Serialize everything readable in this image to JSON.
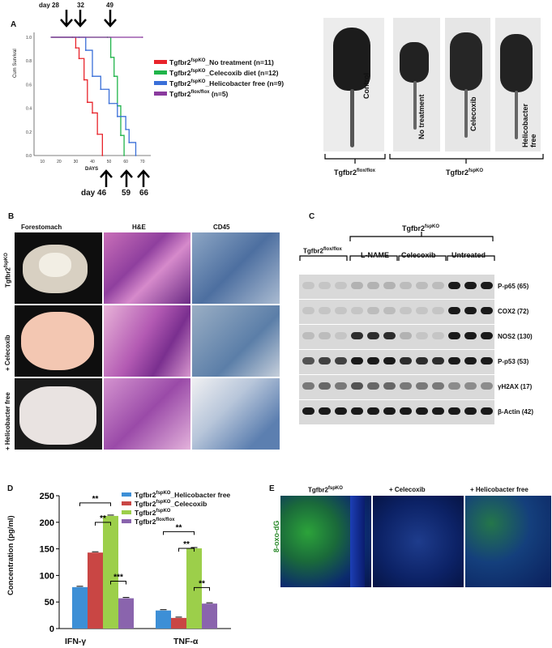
{
  "panels": {
    "a": "A",
    "b": "B",
    "c": "C",
    "d": "D",
    "e": "E"
  },
  "panel_a": {
    "top_days": [
      "day 28",
      "32",
      "49"
    ],
    "bottom_days": [
      "day 46",
      "59",
      "66"
    ],
    "ylabel": "Cum Survival",
    "xlabel": "DAYS",
    "yticks": [
      "1.0",
      "0.8",
      "0.6",
      "0.4",
      "0.2",
      "0.0"
    ],
    "xticks": [
      "10",
      "20",
      "30",
      "40",
      "50",
      "60",
      "70"
    ],
    "legend": [
      {
        "base": "Tgfbr2",
        "sup": "fspKO",
        "rest": "_No treatment (n=11)",
        "color": "#e8242b"
      },
      {
        "base": "Tgfbr2",
        "sup": "fspKO",
        "rest": "_Celecoxib diet (n=12)",
        "color": "#20b44a"
      },
      {
        "base": "Tgfbr2",
        "sup": "fspKO",
        "rest": "_Helicobacter free (n=9)",
        "color": "#3a6fd8"
      },
      {
        "base": "Tgfbr2",
        "sup": "flox/flox",
        "rest": " (n=5)",
        "color": "#8a3a9e"
      }
    ],
    "mouse_labels": [
      "Control",
      "No treatment",
      "Celecoxib",
      "Helicobacter free"
    ],
    "group_control": {
      "base": "Tgfbr2",
      "sup": "flox/flox"
    },
    "group_ko": {
      "base": "Tgfbr2",
      "sup": "fspKO"
    }
  },
  "panel_b": {
    "cols": [
      "Forestomach",
      "H&E",
      "CD45"
    ],
    "rows": [
      {
        "base": "Tgfbr2",
        "sup": "fspKO"
      },
      {
        "base": "+ Celecoxib",
        "sup": ""
      },
      {
        "base": "+ Helicobacter free",
        "sup": ""
      }
    ]
  },
  "panel_c": {
    "top_group": {
      "base": "Tgfbr2",
      "sup": "fspKO"
    },
    "groups": [
      {
        "base": "Tgfbr2",
        "sup": "flox/flox"
      },
      {
        "base": "L-NAME",
        "sup": ""
      },
      {
        "base": "Celecoxib",
        "sup": ""
      },
      {
        "base": "Untreated",
        "sup": ""
      }
    ],
    "rows": [
      "P-p65 (65)",
      "COX2 (72)",
      "NOS2 (130)",
      "P-p53 (53)",
      "γH2AX (17)",
      "β-Actin (42)"
    ]
  },
  "panel_e": {
    "cols": [
      {
        "base": "Tgfbr2",
        "sup": "fspKO"
      },
      {
        "base": "+ Celecoxib",
        "sup": ""
      },
      {
        "base": "+ Helicobacter free",
        "sup": ""
      }
    ],
    "ylabel": "8-oxo-dG"
  },
  "chart_data": [
    {
      "type": "line",
      "title": "",
      "xlabel": "DAYS",
      "ylabel": "Cum Survival",
      "xlim": [
        5,
        75
      ],
      "ylim": [
        0,
        1.0
      ],
      "series": [
        {
          "name": "Tgfbr2fspKO_No treatment (n=11)",
          "color": "#e8242b",
          "x": [
            15,
            28,
            30,
            32,
            35,
            37,
            40,
            43,
            46
          ],
          "y": [
            1.0,
            1.0,
            0.91,
            0.82,
            0.64,
            0.45,
            0.36,
            0.18,
            0.0
          ]
        },
        {
          "name": "Tgfbr2fspKO_Celecoxib diet (n=12)",
          "color": "#20b44a",
          "x": [
            15,
            49,
            51,
            53,
            55,
            57,
            59
          ],
          "y": [
            1.0,
            1.0,
            0.83,
            0.67,
            0.42,
            0.17,
            0.0
          ]
        },
        {
          "name": "Tgfbr2fspKO_Helicobacter free (n=9)",
          "color": "#3a6fd8",
          "x": [
            15,
            32,
            36,
            40,
            45,
            50,
            55,
            60,
            62,
            66
          ],
          "y": [
            1.0,
            1.0,
            0.89,
            0.67,
            0.56,
            0.44,
            0.33,
            0.22,
            0.11,
            0.0
          ]
        },
        {
          "name": "Tgfbr2flox/flox (n=5)",
          "color": "#8a3a9e",
          "x": [
            15,
            70
          ],
          "y": [
            1.0,
            1.0
          ]
        }
      ]
    },
    {
      "type": "bar",
      "title": "",
      "xlabel": "",
      "ylabel": "Concentration (pg/ml)",
      "ylim": [
        0,
        250
      ],
      "yticks": [
        0,
        50,
        100,
        150,
        200,
        250
      ],
      "categories": [
        "IFN-γ",
        "TNF-α"
      ],
      "series": [
        {
          "name": "Tgfbr2fspKO_Helicobacter free",
          "legend_base": "Tgfbr2",
          "legend_sup": "fspKO",
          "legend_rest": "_Helicobacter free",
          "color": "#3d8fd6",
          "values": [
            78,
            34
          ]
        },
        {
          "name": "Tgfbr2fspKO_Celecoxib",
          "legend_base": "Tgfbr2",
          "legend_sup": "fspKO",
          "legend_rest": "_Celecoxib",
          "color": "#c94644",
          "values": [
            143,
            20
          ]
        },
        {
          "name": "Tgfbr2fspKO",
          "legend_base": "Tgfbr2",
          "legend_sup": "fspKO",
          "legend_rest": "",
          "color": "#9ccf4a",
          "values": [
            212,
            151
          ]
        },
        {
          "name": "Tgfbr2flox/flox",
          "legend_base": "Tgfbr2",
          "legend_sup": "flox/flox",
          "legend_rest": "",
          "color": "#8a64ad",
          "values": [
            57,
            47
          ]
        }
      ],
      "significance": [
        "**",
        "**",
        "***",
        "**",
        "**",
        "**"
      ]
    }
  ]
}
